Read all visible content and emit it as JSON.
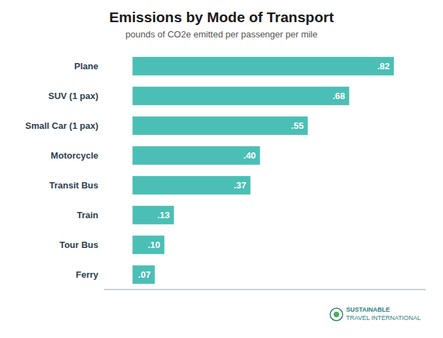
{
  "chart_data": {
    "type": "bar",
    "orientation": "horizontal",
    "title": "Emissions by Mode of Transport",
    "subtitle": "pounds of CO2e emitted per passenger per mile",
    "categories": [
      "Ferry",
      "Tour Bus",
      "Train",
      "Transit Bus",
      "Motorcycle",
      "Small Car (1 pax)",
      "SUV (1 pax)",
      "Plane"
    ],
    "values": [
      0.07,
      0.1,
      0.13,
      0.37,
      0.4,
      0.55,
      0.68,
      0.82
    ],
    "value_labels": [
      ".07",
      ".10",
      ".13",
      ".37",
      ".40",
      ".55",
      ".68",
      ".82"
    ],
    "data_labels": true,
    "color": "#4BBFB5",
    "xlim": [
      -0.09,
      0.92
    ],
    "tick_labels": "y",
    "grid": false,
    "annotations": [
      "SUSTAINABLE",
      "TRAVEL INTERNATIONAL"
    ]
  }
}
